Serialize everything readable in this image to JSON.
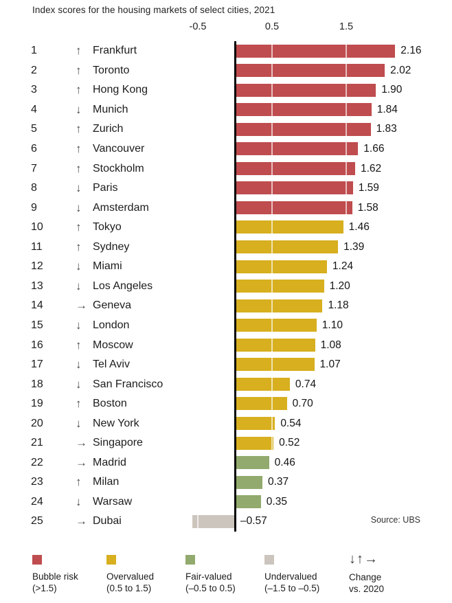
{
  "title": "Index scores for the housing markets of select cities, 2021",
  "source": "Source: UBS",
  "axis": {
    "ticks": [
      "-0.5",
      "0.5",
      "1.5"
    ]
  },
  "chart_data": {
    "type": "bar",
    "orientation": "horizontal",
    "title": "Index scores for the housing markets of select cities, 2021",
    "xlabel": "",
    "ylabel": "",
    "axis_ticks": [
      -0.5,
      0.5,
      1.5
    ],
    "xlim": [
      -0.75,
      2.35
    ],
    "grid": true,
    "legend_position": "bottom",
    "arrow_glyphs": {
      "up": "↑",
      "down": "↓",
      "right": "→"
    },
    "colors": {
      "bubble": "#bf4c4e",
      "overvalued": "#d7af1f",
      "fair": "#92aa6d",
      "undervalued": "#ccc5bd"
    },
    "categories": [
      "Frankfurt",
      "Toronto",
      "Hong Kong",
      "Munich",
      "Zurich",
      "Vancouver",
      "Stockholm",
      "Paris",
      "Amsterdam",
      "Tokyo",
      "Sydney",
      "Miami",
      "Los Angeles",
      "Geneva",
      "London",
      "Moscow",
      "Tel Aviv",
      "San Francisco",
      "Boston",
      "New York",
      "Singapore",
      "Madrid",
      "Milan",
      "Warsaw",
      "Dubai"
    ],
    "rows": [
      {
        "rank": 1,
        "change": "up",
        "city": "Frankfurt",
        "value": 2.16,
        "label": "2.16",
        "category": "bubble"
      },
      {
        "rank": 2,
        "change": "up",
        "city": "Toronto",
        "value": 2.02,
        "label": "2.02",
        "category": "bubble"
      },
      {
        "rank": 3,
        "change": "up",
        "city": "Hong Kong",
        "value": 1.9,
        "label": "1.90",
        "category": "bubble"
      },
      {
        "rank": 4,
        "change": "down",
        "city": "Munich",
        "value": 1.84,
        "label": "1.84",
        "category": "bubble"
      },
      {
        "rank": 5,
        "change": "up",
        "city": "Zurich",
        "value": 1.83,
        "label": "1.83",
        "category": "bubble"
      },
      {
        "rank": 6,
        "change": "up",
        "city": "Vancouver",
        "value": 1.66,
        "label": "1.66",
        "category": "bubble"
      },
      {
        "rank": 7,
        "change": "up",
        "city": "Stockholm",
        "value": 1.62,
        "label": "1.62",
        "category": "bubble"
      },
      {
        "rank": 8,
        "change": "down",
        "city": "Paris",
        "value": 1.59,
        "label": "1.59",
        "category": "bubble"
      },
      {
        "rank": 9,
        "change": "down",
        "city": "Amsterdam",
        "value": 1.58,
        "label": "1.58",
        "category": "bubble"
      },
      {
        "rank": 10,
        "change": "up",
        "city": "Tokyo",
        "value": 1.46,
        "label": "1.46",
        "category": "overvalued"
      },
      {
        "rank": 11,
        "change": "up",
        "city": "Sydney",
        "value": 1.39,
        "label": "1.39",
        "category": "overvalued"
      },
      {
        "rank": 12,
        "change": "down",
        "city": "Miami",
        "value": 1.24,
        "label": "1.24",
        "category": "overvalued"
      },
      {
        "rank": 13,
        "change": "down",
        "city": "Los Angeles",
        "value": 1.2,
        "label": "1.20",
        "category": "overvalued"
      },
      {
        "rank": 14,
        "change": "right",
        "city": "Geneva",
        "value": 1.18,
        "label": "1.18",
        "category": "overvalued"
      },
      {
        "rank": 15,
        "change": "down",
        "city": "London",
        "value": 1.1,
        "label": "1.10",
        "category": "overvalued"
      },
      {
        "rank": 16,
        "change": "up",
        "city": "Moscow",
        "value": 1.08,
        "label": "1.08",
        "category": "overvalued"
      },
      {
        "rank": 17,
        "change": "down",
        "city": "Tel Aviv",
        "value": 1.07,
        "label": "1.07",
        "category": "overvalued"
      },
      {
        "rank": 18,
        "change": "down",
        "city": "San Francisco",
        "value": 0.74,
        "label": "0.74",
        "category": "overvalued"
      },
      {
        "rank": 19,
        "change": "up",
        "city": "Boston",
        "value": 0.7,
        "label": "0.70",
        "category": "overvalued"
      },
      {
        "rank": 20,
        "change": "down",
        "city": "New York",
        "value": 0.54,
        "label": "0.54",
        "category": "overvalued"
      },
      {
        "rank": 21,
        "change": "right",
        "city": "Singapore",
        "value": 0.52,
        "label": "0.52",
        "category": "overvalued"
      },
      {
        "rank": 22,
        "change": "right",
        "city": "Madrid",
        "value": 0.46,
        "label": "0.46",
        "category": "fair"
      },
      {
        "rank": 23,
        "change": "up",
        "city": "Milan",
        "value": 0.37,
        "label": "0.37",
        "category": "fair"
      },
      {
        "rank": 24,
        "change": "down",
        "city": "Warsaw",
        "value": 0.35,
        "label": "0.35",
        "category": "fair"
      },
      {
        "rank": 25,
        "change": "right",
        "city": "Dubai",
        "value": -0.57,
        "label": "–0.57",
        "category": "undervalued"
      }
    ]
  },
  "legend": {
    "items": [
      {
        "label": "Bubble risk",
        "range": "(>1.5)",
        "color": "#bf4c4e"
      },
      {
        "label": "Overvalued",
        "range": "(0.5 to 1.5)",
        "color": "#d7af1f"
      },
      {
        "label": "Fair-valued",
        "range": "(–0.5 to 0.5)",
        "color": "#92aa6d"
      },
      {
        "label": "Undervalued",
        "range": "(–1.5 to –0.5)",
        "color": "#ccc5bd"
      }
    ],
    "change": {
      "arrows": "↓↑→",
      "label": "Change",
      "sublabel": "vs. 2020"
    }
  }
}
